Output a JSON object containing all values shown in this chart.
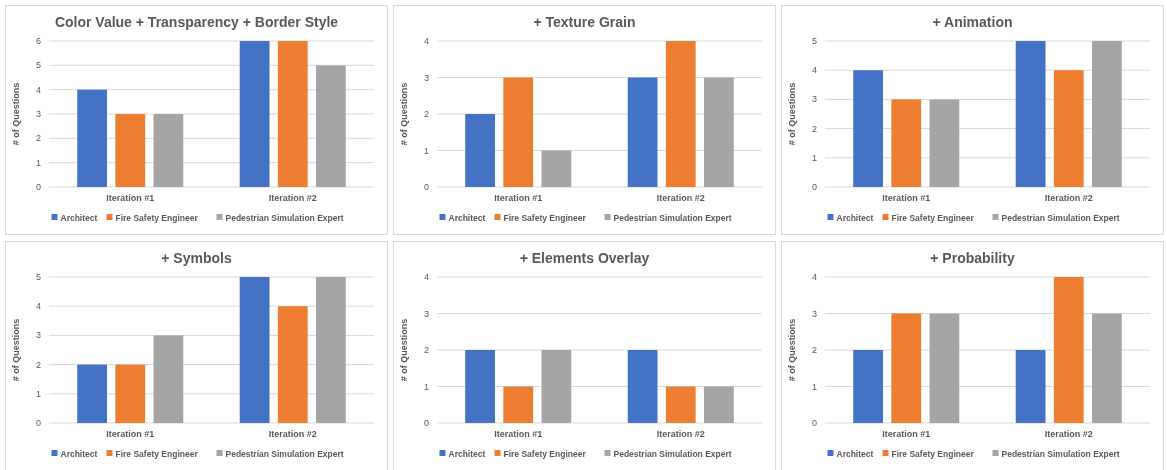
{
  "chart_data": [
    {
      "type": "bar",
      "title": "Color Value + Transparency + Border Style",
      "ylabel": "# of Questions",
      "categories": [
        "Iteration #1",
        "Iteration #2"
      ],
      "series": [
        {
          "name": "Architect",
          "color": "#4472c4",
          "values": [
            4,
            6
          ]
        },
        {
          "name": "Fire Safety Engineer",
          "color": "#ed7d31",
          "values": [
            3,
            6
          ]
        },
        {
          "name": "Pedestrian Simulation Expert",
          "color": "#a5a5a5",
          "values": [
            3,
            5
          ]
        }
      ],
      "ylim": [
        0,
        6
      ],
      "yticks": [
        0,
        1,
        2,
        3,
        4,
        5,
        6
      ],
      "grid": "y",
      "legend": "bottom"
    },
    {
      "type": "bar",
      "title": "+ Texture Grain",
      "ylabel": "# of Questions",
      "categories": [
        "Iteration #1",
        "Iteration #2"
      ],
      "series": [
        {
          "name": "Architect",
          "color": "#4472c4",
          "values": [
            2,
            3
          ]
        },
        {
          "name": "Fire Safety Engineer",
          "color": "#ed7d31",
          "values": [
            3,
            4
          ]
        },
        {
          "name": "Pedestrian Simulation Expert",
          "color": "#a5a5a5",
          "values": [
            1,
            3
          ]
        }
      ],
      "ylim": [
        0,
        4
      ],
      "yticks": [
        0,
        1,
        2,
        3,
        4
      ],
      "grid": "y",
      "legend": "bottom"
    },
    {
      "type": "bar",
      "title": "+ Animation",
      "ylabel": "# of Questions",
      "categories": [
        "Iteration #1",
        "Iteration #2"
      ],
      "series": [
        {
          "name": "Architect",
          "color": "#4472c4",
          "values": [
            4,
            5
          ]
        },
        {
          "name": "Fire Safety Engineer",
          "color": "#ed7d31",
          "values": [
            3,
            4
          ]
        },
        {
          "name": "Pedestrian Simulation Expert",
          "color": "#a5a5a5",
          "values": [
            3,
            5
          ]
        }
      ],
      "ylim": [
        0,
        5
      ],
      "yticks": [
        0,
        1,
        2,
        3,
        4,
        5
      ],
      "grid": "y",
      "legend": "bottom"
    },
    {
      "type": "bar",
      "title": "+ Symbols",
      "ylabel": "# of Questions",
      "categories": [
        "Iteration #1",
        "Iteration #2"
      ],
      "series": [
        {
          "name": "Architect",
          "color": "#4472c4",
          "values": [
            2,
            5
          ]
        },
        {
          "name": "Fire Safety Engineer",
          "color": "#ed7d31",
          "values": [
            2,
            4
          ]
        },
        {
          "name": "Pedestrian Simulation Expert",
          "color": "#a5a5a5",
          "values": [
            3,
            5
          ]
        }
      ],
      "ylim": [
        0,
        5
      ],
      "yticks": [
        0,
        1,
        2,
        3,
        4,
        5
      ],
      "grid": "y",
      "legend": "bottom"
    },
    {
      "type": "bar",
      "title": "+ Elements Overlay",
      "ylabel": "# of Questions",
      "categories": [
        "Iteration #1",
        "Iteration #2"
      ],
      "series": [
        {
          "name": "Architect",
          "color": "#4472c4",
          "values": [
            2,
            2
          ]
        },
        {
          "name": "Fire Safety Engineer",
          "color": "#ed7d31",
          "values": [
            1,
            1
          ]
        },
        {
          "name": "Pedestrian Simulation Expert",
          "color": "#a5a5a5",
          "values": [
            2,
            1
          ]
        }
      ],
      "ylim": [
        0,
        4
      ],
      "yticks": [
        0,
        1,
        2,
        3,
        4
      ],
      "grid": "y",
      "legend": "bottom"
    },
    {
      "type": "bar",
      "title": "+ Probability",
      "ylabel": "# of Questions",
      "categories": [
        "Iteration #1",
        "Iteration #2"
      ],
      "series": [
        {
          "name": "Architect",
          "color": "#4472c4",
          "values": [
            2,
            2
          ]
        },
        {
          "name": "Fire Safety Engineer",
          "color": "#ed7d31",
          "values": [
            3,
            4
          ]
        },
        {
          "name": "Pedestrian Simulation Expert",
          "color": "#a5a5a5",
          "values": [
            3,
            3
          ]
        }
      ],
      "ylim": [
        0,
        4
      ],
      "yticks": [
        0,
        1,
        2,
        3,
        4
      ],
      "grid": "y",
      "legend": "bottom"
    }
  ]
}
